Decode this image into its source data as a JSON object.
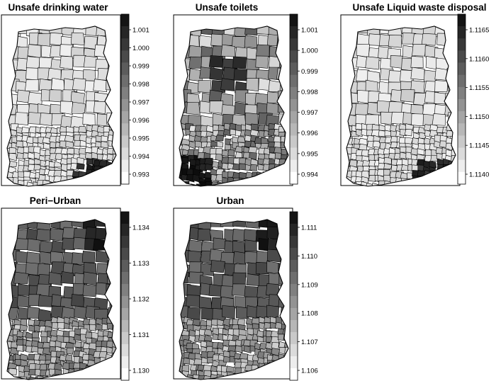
{
  "panels": [
    {
      "title": "Unsafe drinking water",
      "legend_ticks": [
        "1.001",
        "1.000",
        "0.999",
        "0.998",
        "0.997",
        "0.996",
        "0.995",
        "0.994",
        "0.993"
      ],
      "fill_tone": "light",
      "hotspots": [
        "south-east"
      ]
    },
    {
      "title": "Unsafe toilets",
      "legend_ticks": [
        "1.001",
        "1.000",
        "0.999",
        "0.998",
        "0.997",
        "0.996",
        "0.995",
        "0.994"
      ],
      "fill_tone": "mixed",
      "hotspots": [
        "north-centre",
        "south-west"
      ]
    },
    {
      "title": "Unsafe Liquid waste disposal",
      "legend_ticks": [
        "1.1165",
        "1.1160",
        "1.1155",
        "1.1150",
        "1.1145",
        "1.1140"
      ],
      "fill_tone": "light",
      "hotspots": [
        "south-east"
      ]
    },
    {
      "title": "Peri−Urban",
      "legend_ticks": [
        "1.134",
        "1.133",
        "1.132",
        "1.131",
        "1.130"
      ],
      "fill_tone": "dark",
      "hotspots": [
        "north-east"
      ]
    },
    {
      "title": "Urban",
      "legend_ticks": [
        "1.111",
        "1.110",
        "1.109",
        "1.108",
        "1.107",
        "1.106"
      ],
      "fill_tone": "dark",
      "hotspots": [
        "north-east"
      ]
    }
  ]
}
